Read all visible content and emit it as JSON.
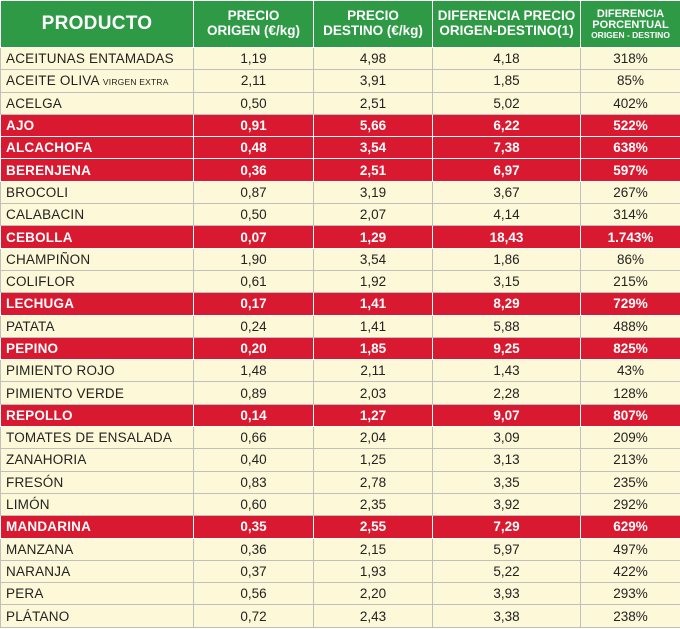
{
  "headers": {
    "producto": "PRODUCTO",
    "origen": [
      "PRECIO",
      "ORIGEN (€/kg)"
    ],
    "destino": [
      "PRECIO",
      "DESTINO (€/kg)"
    ],
    "diferencia": [
      "DIFERENCIA PRECIO",
      "ORIGEN-DESTINO(1)"
    ],
    "porcentual": [
      "DIFERENCIA",
      "PORCENTUAL",
      "ORIGEN - DESTINO"
    ]
  },
  "colors": {
    "header_bg": "#2e9a46",
    "row_bg": "#fdf8d8",
    "highlight_bg": "#d81930"
  },
  "rows": [
    {
      "producto": "ACEITUNAS ENTAMADAS",
      "sub": "",
      "origen": "1,19",
      "destino": "4,98",
      "diferencia": "4,18",
      "porcentual": "318%",
      "highlight": false
    },
    {
      "producto": "ACEITE OLIVA",
      "sub": "VIRGEN EXTRA",
      "origen": "2,11",
      "destino": "3,91",
      "diferencia": "1,85",
      "porcentual": "85%",
      "highlight": false
    },
    {
      "producto": "ACELGA",
      "sub": "",
      "origen": "0,50",
      "destino": "2,51",
      "diferencia": "5,02",
      "porcentual": "402%",
      "highlight": false
    },
    {
      "producto": "AJO",
      "sub": "",
      "origen": "0,91",
      "destino": "5,66",
      "diferencia": "6,22",
      "porcentual": "522%",
      "highlight": true
    },
    {
      "producto": "ALCACHOFA",
      "sub": "",
      "origen": "0,48",
      "destino": "3,54",
      "diferencia": "7,38",
      "porcentual": "638%",
      "highlight": true
    },
    {
      "producto": "BERENJENA",
      "sub": "",
      "origen": "0,36",
      "destino": "2,51",
      "diferencia": "6,97",
      "porcentual": "597%",
      "highlight": true
    },
    {
      "producto": "BROCOLI",
      "sub": "",
      "origen": "0,87",
      "destino": "3,19",
      "diferencia": "3,67",
      "porcentual": "267%",
      "highlight": false
    },
    {
      "producto": "CALABACIN",
      "sub": "",
      "origen": "0,50",
      "destino": "2,07",
      "diferencia": "4,14",
      "porcentual": "314%",
      "highlight": false
    },
    {
      "producto": "CEBOLLA",
      "sub": "",
      "origen": "0,07",
      "destino": "1,29",
      "diferencia": "18,43",
      "porcentual": "1.743%",
      "highlight": true
    },
    {
      "producto": "CHAMPIÑON",
      "sub": "",
      "origen": "1,90",
      "destino": "3,54",
      "diferencia": "1,86",
      "porcentual": "86%",
      "highlight": false
    },
    {
      "producto": "COLIFLOR",
      "sub": "",
      "origen": "0,61",
      "destino": "1,92",
      "diferencia": "3,15",
      "porcentual": "215%",
      "highlight": false
    },
    {
      "producto": "LECHUGA",
      "sub": "",
      "origen": "0,17",
      "destino": "1,41",
      "diferencia": "8,29",
      "porcentual": "729%",
      "highlight": true
    },
    {
      "producto": "PATATA",
      "sub": "",
      "origen": "0,24",
      "destino": "1,41",
      "diferencia": "5,88",
      "porcentual": "488%",
      "highlight": false
    },
    {
      "producto": "PEPINO",
      "sub": "",
      "origen": "0,20",
      "destino": "1,85",
      "diferencia": "9,25",
      "porcentual": "825%",
      "highlight": true
    },
    {
      "producto": "PIMIENTO ROJO",
      "sub": "",
      "origen": "1,48",
      "destino": "2,11",
      "diferencia": "1,43",
      "porcentual": "43%",
      "highlight": false
    },
    {
      "producto": "PIMIENTO VERDE",
      "sub": "",
      "origen": "0,89",
      "destino": "2,03",
      "diferencia": "2,28",
      "porcentual": "128%",
      "highlight": false
    },
    {
      "producto": "REPOLLO",
      "sub": "",
      "origen": "0,14",
      "destino": "1,27",
      "diferencia": "9,07",
      "porcentual": "807%",
      "highlight": true
    },
    {
      "producto": "TOMATES DE ENSALADA",
      "sub": "",
      "origen": "0,66",
      "destino": "2,04",
      "diferencia": "3,09",
      "porcentual": "209%",
      "highlight": false
    },
    {
      "producto": "ZANAHORIA",
      "sub": "",
      "origen": "0,40",
      "destino": "1,25",
      "diferencia": "3,13",
      "porcentual": "213%",
      "highlight": false
    },
    {
      "producto": "FRESÓN",
      "sub": "",
      "origen": "0,83",
      "destino": "2,78",
      "diferencia": "3,35",
      "porcentual": "235%",
      "highlight": false
    },
    {
      "producto": "LIMÓN",
      "sub": "",
      "origen": "0,60",
      "destino": "2,35",
      "diferencia": "3,92",
      "porcentual": "292%",
      "highlight": false
    },
    {
      "producto": "MANDARINA",
      "sub": "",
      "origen": "0,35",
      "destino": "2,55",
      "diferencia": "7,29",
      "porcentual": "629%",
      "highlight": true
    },
    {
      "producto": "MANZANA",
      "sub": "",
      "origen": "0,36",
      "destino": "2,15",
      "diferencia": "5,97",
      "porcentual": "497%",
      "highlight": false
    },
    {
      "producto": "NARANJA",
      "sub": "",
      "origen": "0,37",
      "destino": "1,93",
      "diferencia": "5,22",
      "porcentual": "422%",
      "highlight": false
    },
    {
      "producto": "PERA",
      "sub": "",
      "origen": "0,56",
      "destino": "2,20",
      "diferencia": "3,93",
      "porcentual": "293%",
      "highlight": false
    },
    {
      "producto": "PLÁTANO",
      "sub": "",
      "origen": "0,72",
      "destino": "2,43",
      "diferencia": "3,38",
      "porcentual": "238%",
      "highlight": false
    }
  ]
}
